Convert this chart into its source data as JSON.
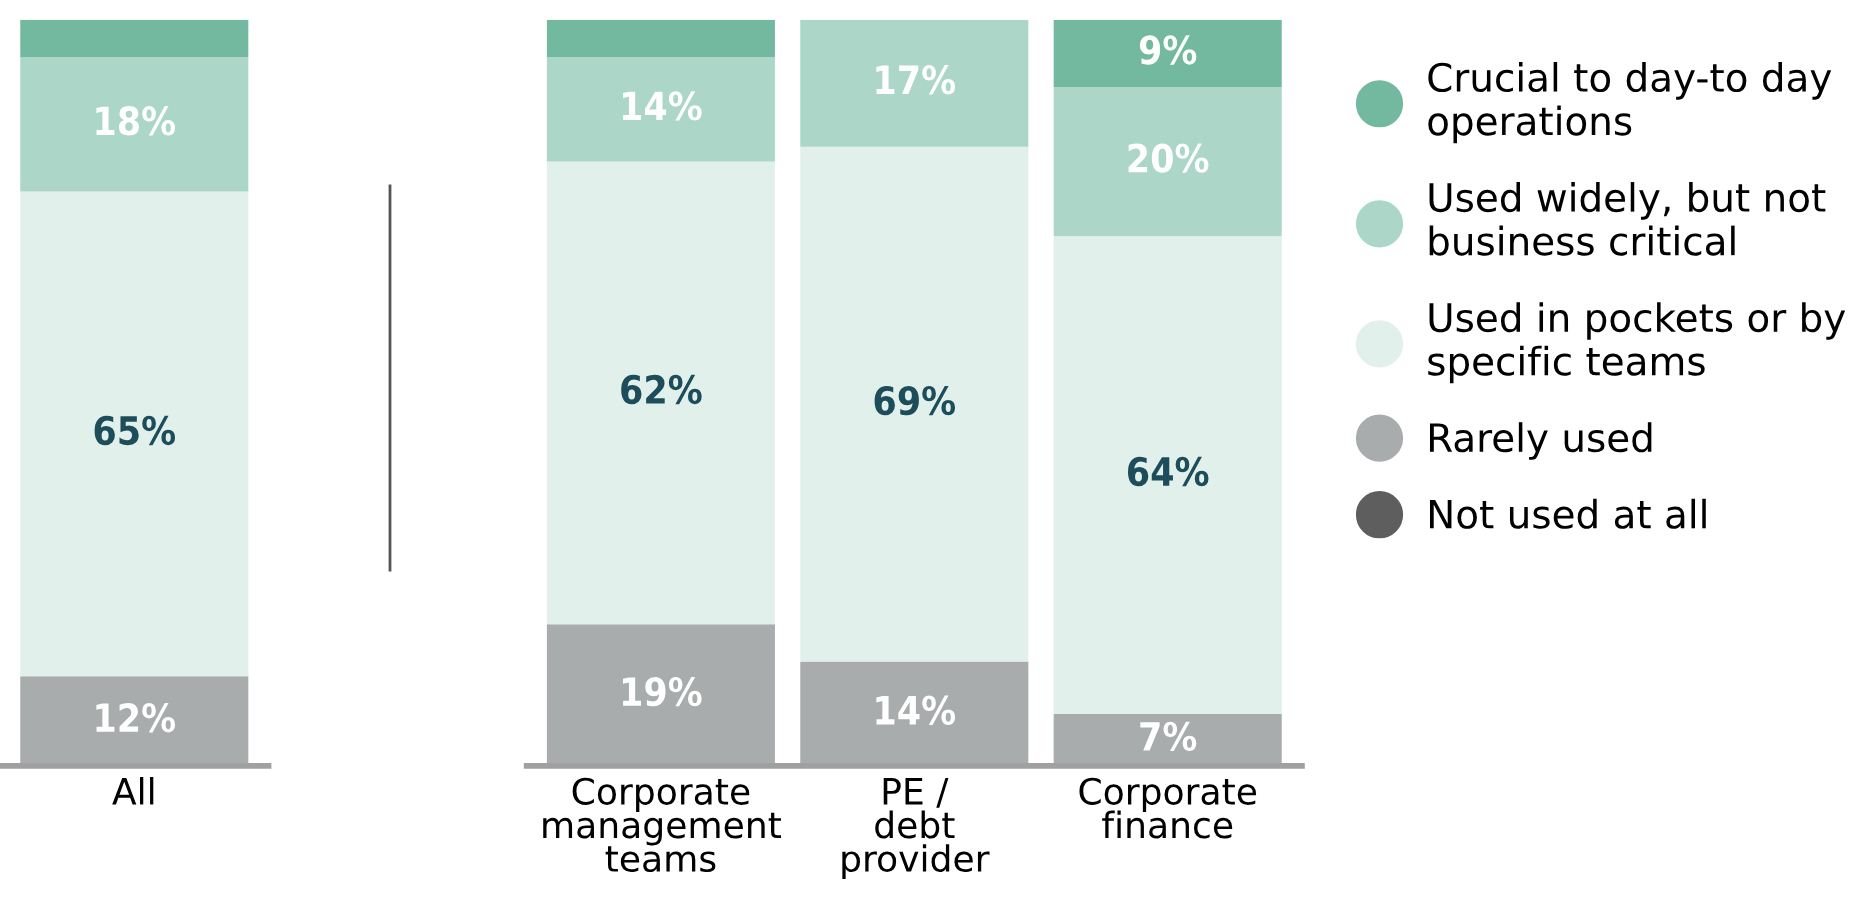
{
  "chart_data": [
    {
      "type": "bar",
      "stacked": true,
      "categories": [
        "All"
      ],
      "series": [
        {
          "color": "#a9acac",
          "values": [
            12
          ],
          "value_labels": [
            "12%"
          ]
        },
        {
          "color": "#e1f0ea",
          "values": [
            65
          ],
          "value_labels": [
            "65%"
          ]
        },
        {
          "color": "#abd6c8",
          "values": [
            18
          ],
          "value_labels": [
            "18%"
          ]
        },
        {
          "color": "#72b9a0",
          "values": [
            5
          ],
          "value_labels": [
            null
          ]
        }
      ]
    },
    {
      "type": "bar",
      "stacked": true,
      "legend": "right",
      "categories": [
        "Corporate\nmanagement\nteams",
        "PE /\ndebt\nprovider",
        "Corporate\nfinance"
      ],
      "series": [
        {
          "name": "Not used at all",
          "color": "#5e5e5e",
          "values": [
            0,
            0,
            0
          ]
        },
        {
          "name": "Rarely used",
          "color": "#a9acac",
          "values": [
            19,
            14,
            7
          ],
          "value_labels": [
            "19%",
            "14%",
            "7%"
          ]
        },
        {
          "name": "Used in pockets or by\nspecific teams",
          "color": "#e1f0ea",
          "values": [
            62,
            69,
            64
          ],
          "value_labels": [
            "62%",
            "69%",
            "64%"
          ]
        },
        {
          "name": "Used widely, but not\nbusiness critical",
          "color": "#abd6c8",
          "values": [
            14,
            17,
            20
          ],
          "value_labels": [
            "14%",
            "17%",
            "20%"
          ]
        },
        {
          "name": "Crucial to day-to day\noperations",
          "color": "#72b9a0",
          "values": [
            5,
            0,
            9
          ],
          "value_labels": [
            null,
            null,
            "9%"
          ]
        }
      ]
    }
  ]
}
